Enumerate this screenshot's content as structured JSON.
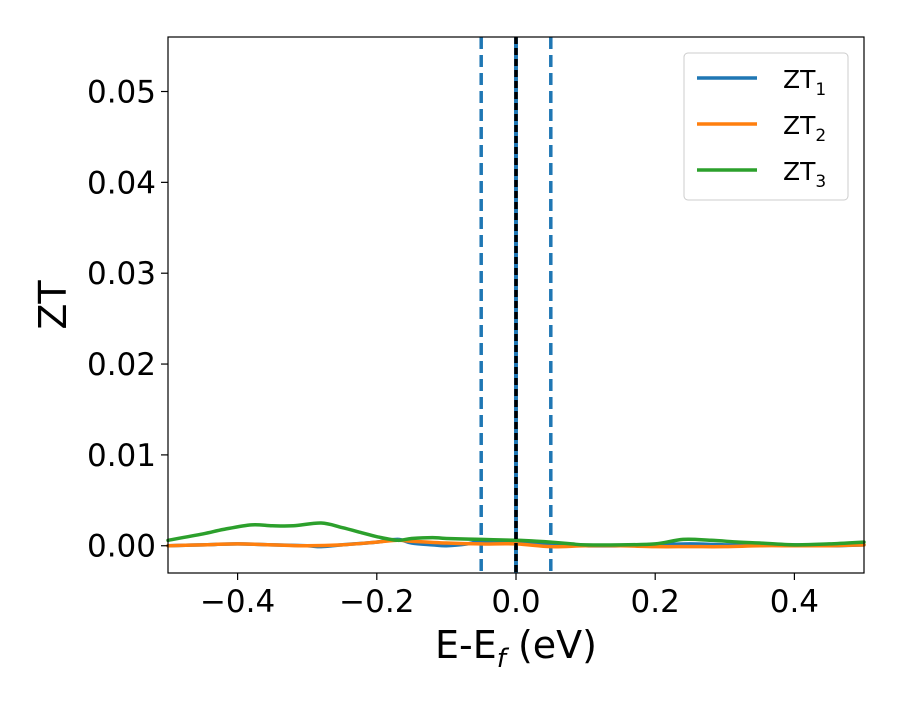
{
  "chart_data": {
    "type": "line",
    "xlabel_main": "E-E",
    "xlabel_sub": "f",
    "xlabel_unit": " (eV)",
    "ylabel": "ZT",
    "xlim": [
      -0.5,
      0.5
    ],
    "ylim": [
      -0.003,
      0.056
    ],
    "x_ticks": [
      -0.4,
      -0.2,
      0.0,
      0.2,
      0.4
    ],
    "x_tick_labels": [
      "−0.4",
      "−0.2",
      "0.0",
      "0.2",
      "0.4"
    ],
    "y_ticks": [
      0.0,
      0.01,
      0.02,
      0.03,
      0.04,
      0.05
    ],
    "y_tick_labels": [
      "0.00",
      "0.01",
      "0.02",
      "0.03",
      "0.04",
      "0.05"
    ],
    "grid": false,
    "legend_position": "top-right",
    "vertical_lines": [
      {
        "x": -0.05,
        "style": "dashed",
        "color": "#1f77b4"
      },
      {
        "x": 0.0,
        "style": "solid",
        "color": "#1f77b4"
      },
      {
        "x": 0.0,
        "style": "dashed",
        "color": "#000000"
      },
      {
        "x": 0.05,
        "style": "dashed",
        "color": "#1f77b4"
      }
    ],
    "series": [
      {
        "name": "ZT",
        "subscript": "1",
        "color": "#1f77b4",
        "x": [
          -0.5,
          -0.45,
          -0.4,
          -0.35,
          -0.3,
          -0.28,
          -0.25,
          -0.2,
          -0.17,
          -0.15,
          -0.12,
          -0.1,
          -0.07,
          -0.05,
          -0.02,
          0.0,
          0.02,
          0.05,
          0.1,
          0.15,
          0.2,
          0.25,
          0.3,
          0.35,
          0.4,
          0.45,
          0.5
        ],
        "y": [
          0.0,
          0.0001,
          0.0002,
          0.0001,
          0.0,
          -0.0001,
          0.0001,
          0.0004,
          0.0007,
          0.0003,
          0.0001,
          0.0,
          0.0002,
          0.0005,
          0.0005,
          0.0004,
          0.0003,
          0.0002,
          0.0,
          0.0,
          0.0001,
          0.0002,
          0.0001,
          0.0001,
          0.0001,
          0.0,
          0.0001
        ]
      },
      {
        "name": "ZT",
        "subscript": "2",
        "color": "#ff7f0e",
        "x": [
          -0.5,
          -0.45,
          -0.4,
          -0.35,
          -0.3,
          -0.25,
          -0.2,
          -0.17,
          -0.15,
          -0.1,
          -0.05,
          0.0,
          0.05,
          0.1,
          0.15,
          0.2,
          0.25,
          0.3,
          0.35,
          0.4,
          0.45,
          0.5
        ],
        "y": [
          0.0,
          0.0001,
          0.0002,
          0.0001,
          0.0,
          0.0001,
          0.0004,
          0.0006,
          0.0005,
          0.0003,
          0.0002,
          0.0002,
          -0.0001,
          0.0,
          0.0,
          -0.0001,
          -0.0001,
          -0.0001,
          0.0,
          0.0,
          0.0,
          0.0001
        ]
      },
      {
        "name": "ZT",
        "subscript": "3",
        "color": "#2ca02c",
        "x": [
          -0.5,
          -0.45,
          -0.42,
          -0.38,
          -0.35,
          -0.32,
          -0.28,
          -0.25,
          -0.22,
          -0.2,
          -0.17,
          -0.15,
          -0.12,
          -0.1,
          -0.05,
          0.0,
          0.03,
          0.05,
          0.08,
          0.1,
          0.15,
          0.2,
          0.24,
          0.28,
          0.32,
          0.35,
          0.4,
          0.45,
          0.5
        ],
        "y": [
          0.0006,
          0.0013,
          0.0018,
          0.0023,
          0.0022,
          0.0022,
          0.0025,
          0.002,
          0.0014,
          0.001,
          0.0006,
          0.0008,
          0.0009,
          0.0008,
          0.0007,
          0.0006,
          0.0005,
          0.0004,
          0.0002,
          0.0001,
          0.0001,
          0.0002,
          0.0007,
          0.0006,
          0.0004,
          0.0003,
          0.0001,
          0.0002,
          0.0004
        ]
      }
    ]
  }
}
